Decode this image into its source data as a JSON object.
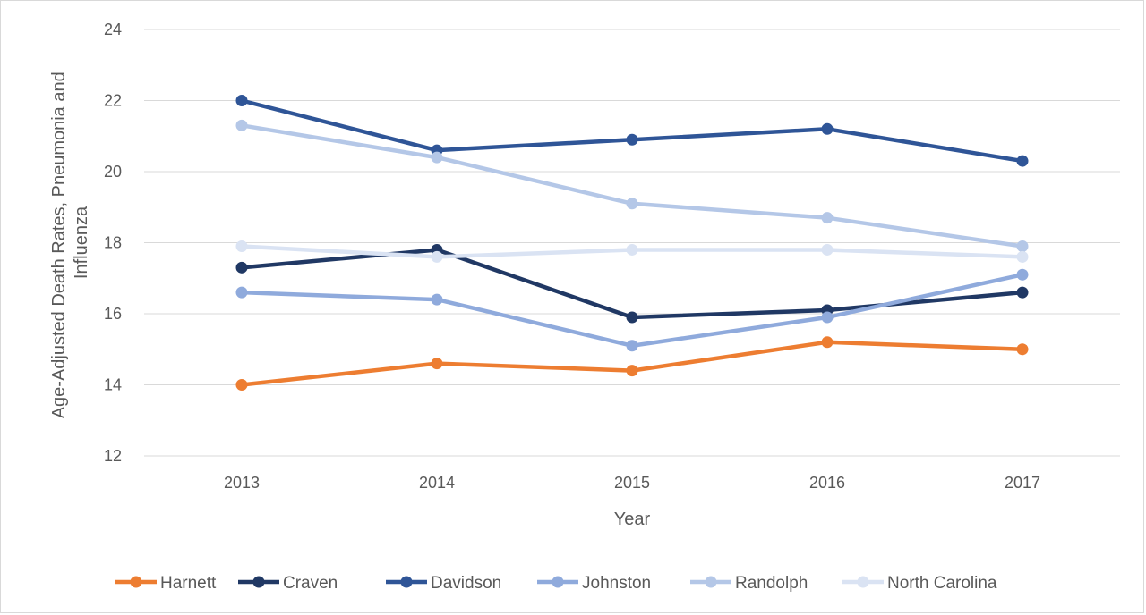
{
  "chart_data": {
    "type": "line",
    "title": "",
    "xlabel": "Year",
    "ylabel_lines": [
      "Age-Adjusted Death Rates, Pneumonia and",
      "Influenza"
    ],
    "categories": [
      "2013",
      "2014",
      "2015",
      "2016",
      "2017"
    ],
    "ylim": [
      12,
      24
    ],
    "yticks": [
      12,
      14,
      16,
      18,
      20,
      22,
      24
    ],
    "grid": true,
    "legend_position": "bottom",
    "series": [
      {
        "name": "Harnett",
        "color": "#ED7D31",
        "values": [
          14.0,
          14.6,
          14.4,
          15.2,
          15.0
        ]
      },
      {
        "name": "Craven",
        "color": "#203864",
        "values": [
          17.3,
          17.8,
          15.9,
          16.1,
          16.6
        ]
      },
      {
        "name": "Davidson",
        "color": "#2F5597",
        "values": [
          22.0,
          20.6,
          20.9,
          21.2,
          20.3
        ]
      },
      {
        "name": "Johnston",
        "color": "#8FAADC",
        "values": [
          16.6,
          16.4,
          15.1,
          15.9,
          17.1
        ]
      },
      {
        "name": "Randolph",
        "color": "#B4C7E7",
        "values": [
          21.3,
          20.4,
          19.1,
          18.7,
          17.9
        ]
      },
      {
        "name": "North Carolina",
        "color": "#DAE3F3",
        "values": [
          17.9,
          17.6,
          17.8,
          17.8,
          17.6
        ]
      }
    ]
  }
}
